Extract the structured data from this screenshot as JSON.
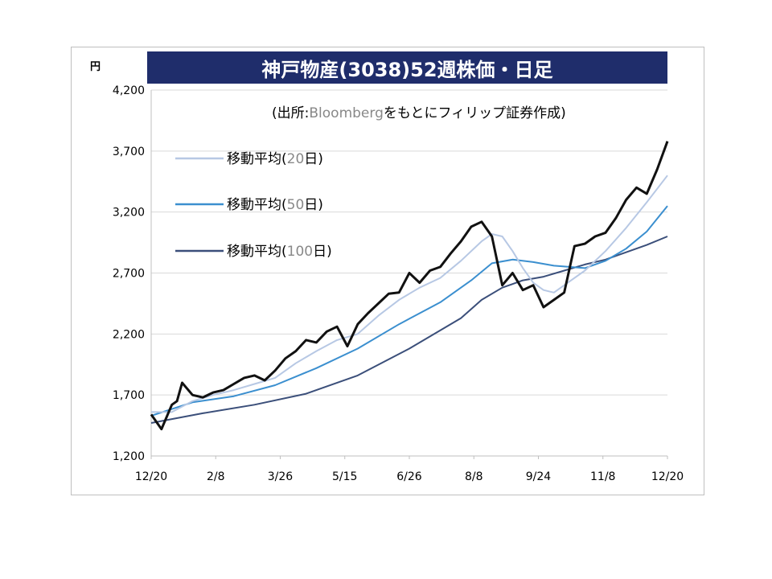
{
  "chart_data": {
    "type": "line",
    "title": "神戸物産(3038)52週株価・日足",
    "unit": "円",
    "source_prefix": "(出所:",
    "source_name": "Bloomberg",
    "source_suffix": "をもとにフィリップ証券作成)",
    "ylim": [
      1200,
      4200
    ],
    "y_ticks": [
      1200,
      1700,
      2200,
      2700,
      3200,
      3700,
      4200
    ],
    "y_tick_labels": [
      "1,200",
      "1,700",
      "2,200",
      "2,700",
      "3,200",
      "3,700",
      "4,200"
    ],
    "x_tick_labels": [
      "12/20",
      "2/8",
      "3/26",
      "5/15",
      "6/26",
      "8/8",
      "9/24",
      "11/8",
      "12/20"
    ],
    "grid": true,
    "legend_position": "upper-left",
    "series": [
      {
        "name": "price",
        "color": "#111111",
        "x": [
          0,
          2,
          4,
          5,
          6,
          8,
          10,
          12,
          14,
          16,
          18,
          20,
          22,
          24,
          26,
          28,
          30,
          32,
          34,
          36,
          38,
          40,
          42,
          44,
          46,
          48,
          50,
          52,
          54,
          56,
          58,
          60,
          62,
          64,
          66,
          68,
          70,
          72,
          74,
          76,
          78,
          80,
          82,
          84,
          86,
          88,
          90,
          92,
          94,
          96,
          98,
          100
        ],
        "values": [
          1540,
          1420,
          1620,
          1650,
          1800,
          1700,
          1680,
          1720,
          1740,
          1790,
          1840,
          1860,
          1820,
          1900,
          2000,
          2060,
          2150,
          2130,
          2220,
          2260,
          2100,
          2280,
          2370,
          2450,
          2530,
          2540,
          2700,
          2620,
          2720,
          2750,
          2860,
          2960,
          3080,
          3120,
          3000,
          2600,
          2700,
          2560,
          2600,
          2420,
          2480,
          2540,
          2920,
          2940,
          3000,
          3030,
          3150,
          3300,
          3400,
          3350,
          3550,
          3780
        ]
      },
      {
        "name": "移動平均(",
        "period": "20",
        "suffix": "日)",
        "color": "#b7c8e4",
        "x": [
          0,
          4,
          8,
          12,
          16,
          20,
          24,
          28,
          32,
          36,
          40,
          44,
          48,
          52,
          56,
          60,
          64,
          66,
          68,
          70,
          72,
          74,
          76,
          78,
          80,
          84,
          88,
          92,
          96,
          100
        ],
        "values": [
          1560,
          1560,
          1650,
          1700,
          1740,
          1790,
          1840,
          1960,
          2060,
          2150,
          2200,
          2350,
          2480,
          2580,
          2660,
          2800,
          2960,
          3020,
          3000,
          2880,
          2740,
          2620,
          2560,
          2540,
          2600,
          2720,
          2880,
          3070,
          3280,
          3500
        ]
      },
      {
        "name": "移動平均(",
        "period": "50",
        "suffix": "日)",
        "color": "#3b8fcf",
        "x": [
          0,
          8,
          16,
          24,
          32,
          40,
          48,
          56,
          62,
          66,
          70,
          74,
          78,
          84,
          88,
          92,
          96,
          100
        ],
        "values": [
          1530,
          1640,
          1690,
          1780,
          1920,
          2080,
          2280,
          2460,
          2640,
          2780,
          2810,
          2790,
          2760,
          2740,
          2800,
          2900,
          3040,
          3250
        ]
      },
      {
        "name": "移動平均(",
        "period": "100",
        "suffix": "日)",
        "color": "#3b4f7a",
        "x": [
          0,
          10,
          20,
          30,
          40,
          50,
          60,
          64,
          68,
          72,
          76,
          80,
          84,
          88,
          92,
          96,
          100
        ],
        "values": [
          1470,
          1550,
          1620,
          1710,
          1860,
          2080,
          2330,
          2480,
          2580,
          2640,
          2670,
          2720,
          2770,
          2810,
          2870,
          2930,
          3000
        ]
      }
    ]
  }
}
